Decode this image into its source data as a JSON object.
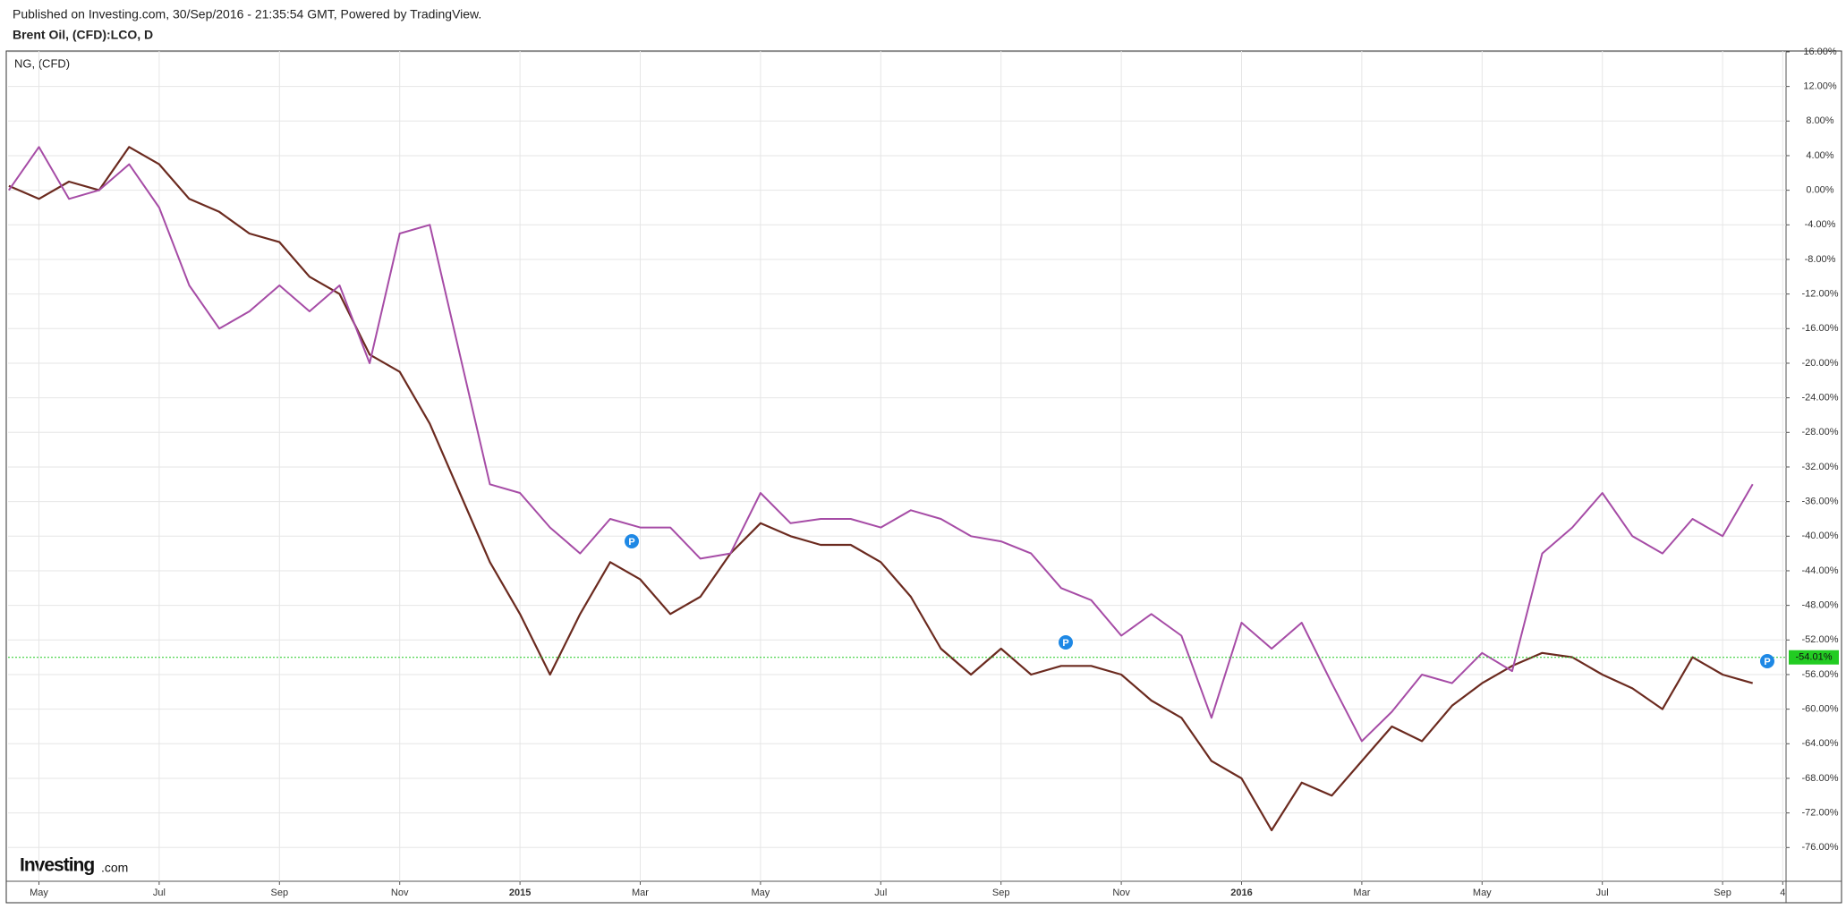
{
  "chart_data": {
    "type": "line",
    "published": "Published on Investing.com, 30/Sep/2016 - 21:35:54 GMT, Powered by TradingView.",
    "logo": {
      "brand": "Investing",
      "suffix": ".com"
    },
    "event_label": "P",
    "categories": [
      null,
      "May",
      null,
      null,
      null,
      "Jul",
      null,
      null,
      null,
      "Sep",
      null,
      null,
      null,
      "Nov",
      null,
      null,
      null,
      "2015",
      null,
      null,
      null,
      "Mar",
      null,
      null,
      null,
      "May",
      null,
      null,
      null,
      "Jul",
      null,
      null,
      null,
      "Sep",
      null,
      null,
      null,
      "Nov",
      null,
      null,
      null,
      "2016",
      null,
      null,
      null,
      "Mar",
      null,
      null,
      null,
      "May",
      null,
      null,
      null,
      "Jul",
      null,
      null,
      null,
      "Sep",
      null,
      "4"
    ],
    "series": [
      {
        "name": "Brent Oil, (CFD):LCO, D",
        "color": "#6b2a1f",
        "values": [
          0.5,
          -1,
          1,
          0,
          5,
          3,
          -1,
          -2.5,
          -5,
          -6,
          -10,
          -12,
          -19,
          -21,
          -27,
          -35,
          -43,
          -49,
          -56,
          -49,
          -43,
          -45,
          -49,
          -47,
          -42,
          -38.5,
          -40,
          -41,
          -41,
          -43,
          -47,
          -53,
          -56,
          -53,
          -56,
          -55,
          -55,
          -56,
          -59,
          -61,
          -66,
          -68,
          -74,
          -68.5,
          -70,
          -66,
          -62,
          -63.7,
          -59.6,
          -57,
          -55,
          -53.5,
          -54,
          -56,
          -57.6,
          -60,
          -54,
          -56,
          -57,
          null
        ]
      },
      {
        "name": "NG,  (CFD)",
        "color": "#a64ca6",
        "values": [
          0,
          5,
          -1,
          0,
          3,
          -2,
          -11,
          -16,
          -14,
          -11,
          -14,
          -11,
          -20,
          -5,
          -4,
          -19,
          -34,
          -35,
          -39,
          -42,
          -38,
          -39,
          -39,
          -42.6,
          -42,
          -35,
          -38.5,
          -38,
          -38,
          -39,
          -37,
          -38,
          -40,
          -40.6,
          -42,
          -46,
          -47.4,
          -51.5,
          -49,
          -51.5,
          -61,
          -50,
          -53,
          -50,
          -57,
          -63.7,
          -60.3,
          -56,
          -57,
          -53.5,
          -55.6,
          -42,
          -39,
          -35,
          -40,
          -42,
          -38,
          -40,
          -34,
          null
        ]
      }
    ],
    "last_value": {
      "value": -54.01,
      "label": "-54.01%",
      "color": "#22cc22"
    },
    "ylim": [
      -79.9,
      16.1
    ],
    "yticks": [
      {
        "value": 16,
        "label": "16.00%"
      },
      {
        "value": 12,
        "label": "12.00%"
      },
      {
        "value": 8,
        "label": "8.00%"
      },
      {
        "value": 4,
        "label": "4.00%"
      },
      {
        "value": 0,
        "label": "0.00%"
      },
      {
        "value": -4,
        "label": "-4.00%"
      },
      {
        "value": -8,
        "label": "-8.00%"
      },
      {
        "value": -12,
        "label": "-12.00%"
      },
      {
        "value": -16,
        "label": "-16.00%"
      },
      {
        "value": -20,
        "label": "-20.00%"
      },
      {
        "value": -24,
        "label": "-24.00%"
      },
      {
        "value": -28,
        "label": "-28.00%"
      },
      {
        "value": -32,
        "label": "-32.00%"
      },
      {
        "value": -36,
        "label": "-36.00%"
      },
      {
        "value": -40,
        "label": "-40.00%"
      },
      {
        "value": -44,
        "label": "-44.00%"
      },
      {
        "value": -48,
        "label": "-48.00%"
      },
      {
        "value": -52,
        "label": "-52.00%"
      },
      {
        "value": -56,
        "label": "-56.00%"
      },
      {
        "value": -60,
        "label": "-60.00%"
      },
      {
        "value": -64,
        "label": "-64.00%"
      },
      {
        "value": -68,
        "label": "-68.00%"
      },
      {
        "value": -72,
        "label": "-72.00%"
      },
      {
        "value": -76,
        "label": "-76.00%"
      }
    ],
    "grid": true
  }
}
